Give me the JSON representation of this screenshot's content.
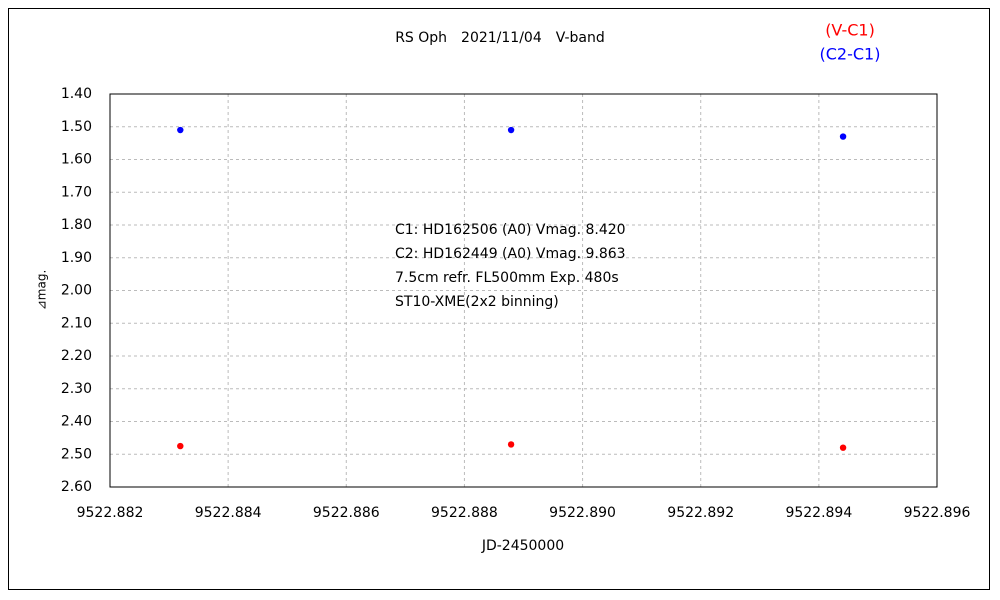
{
  "chart_data": {
    "type": "scatter",
    "title": "RS Oph　2021/11/04　V-band",
    "xlabel": "JD-2450000",
    "ylabel": "⊿mag.",
    "annotations": [
      "C1: HD162506 (A0) Vmag. 8.420",
      "C2: HD162449 (A0) Vmag. 9.863",
      "7.5cm refr. FL500mm Exp. 480s",
      "ST10-XME(2x2 binning)"
    ],
    "xlim": [
      9522.882,
      9522.896
    ],
    "xticks": [
      9522.882,
      9522.884,
      9522.886,
      9522.888,
      {
        "value": 9522.89,
        "label": "9522.890"
      },
      9522.892,
      9522.894,
      9522.896
    ],
    "ylim": [
      1.4,
      2.6
    ],
    "y_inverted": true,
    "yticks": [
      {
        "value": 1.4,
        "label": "1.40"
      },
      {
        "value": 1.5,
        "label": "1.50"
      },
      {
        "value": 1.6,
        "label": "1.60"
      },
      {
        "value": 1.7,
        "label": "1.70"
      },
      {
        "value": 1.8,
        "label": "1.80"
      },
      {
        "value": 1.9,
        "label": "1.90"
      },
      {
        "value": 2.0,
        "label": "2.00"
      },
      {
        "value": 2.1,
        "label": "2.10"
      },
      {
        "value": 2.2,
        "label": "2.20"
      },
      {
        "value": 2.3,
        "label": "2.30"
      },
      {
        "value": 2.4,
        "label": "2.40"
      },
      {
        "value": 2.5,
        "label": "2.50"
      },
      {
        "value": 2.6,
        "label": "2.60"
      }
    ],
    "grid": true,
    "legend": "top-right",
    "series": [
      {
        "name": "(V-C1)",
        "color": "#ff0000",
        "x": [
          9522.88319,
          9522.88879,
          9522.89441
        ],
        "values": [
          2.475,
          2.47,
          2.48
        ]
      },
      {
        "name": "(C2-C1)",
        "color": "#0000ff",
        "x": [
          9522.88319,
          9522.88879,
          9522.89441
        ],
        "values": [
          1.51,
          1.51,
          1.53
        ]
      }
    ]
  }
}
